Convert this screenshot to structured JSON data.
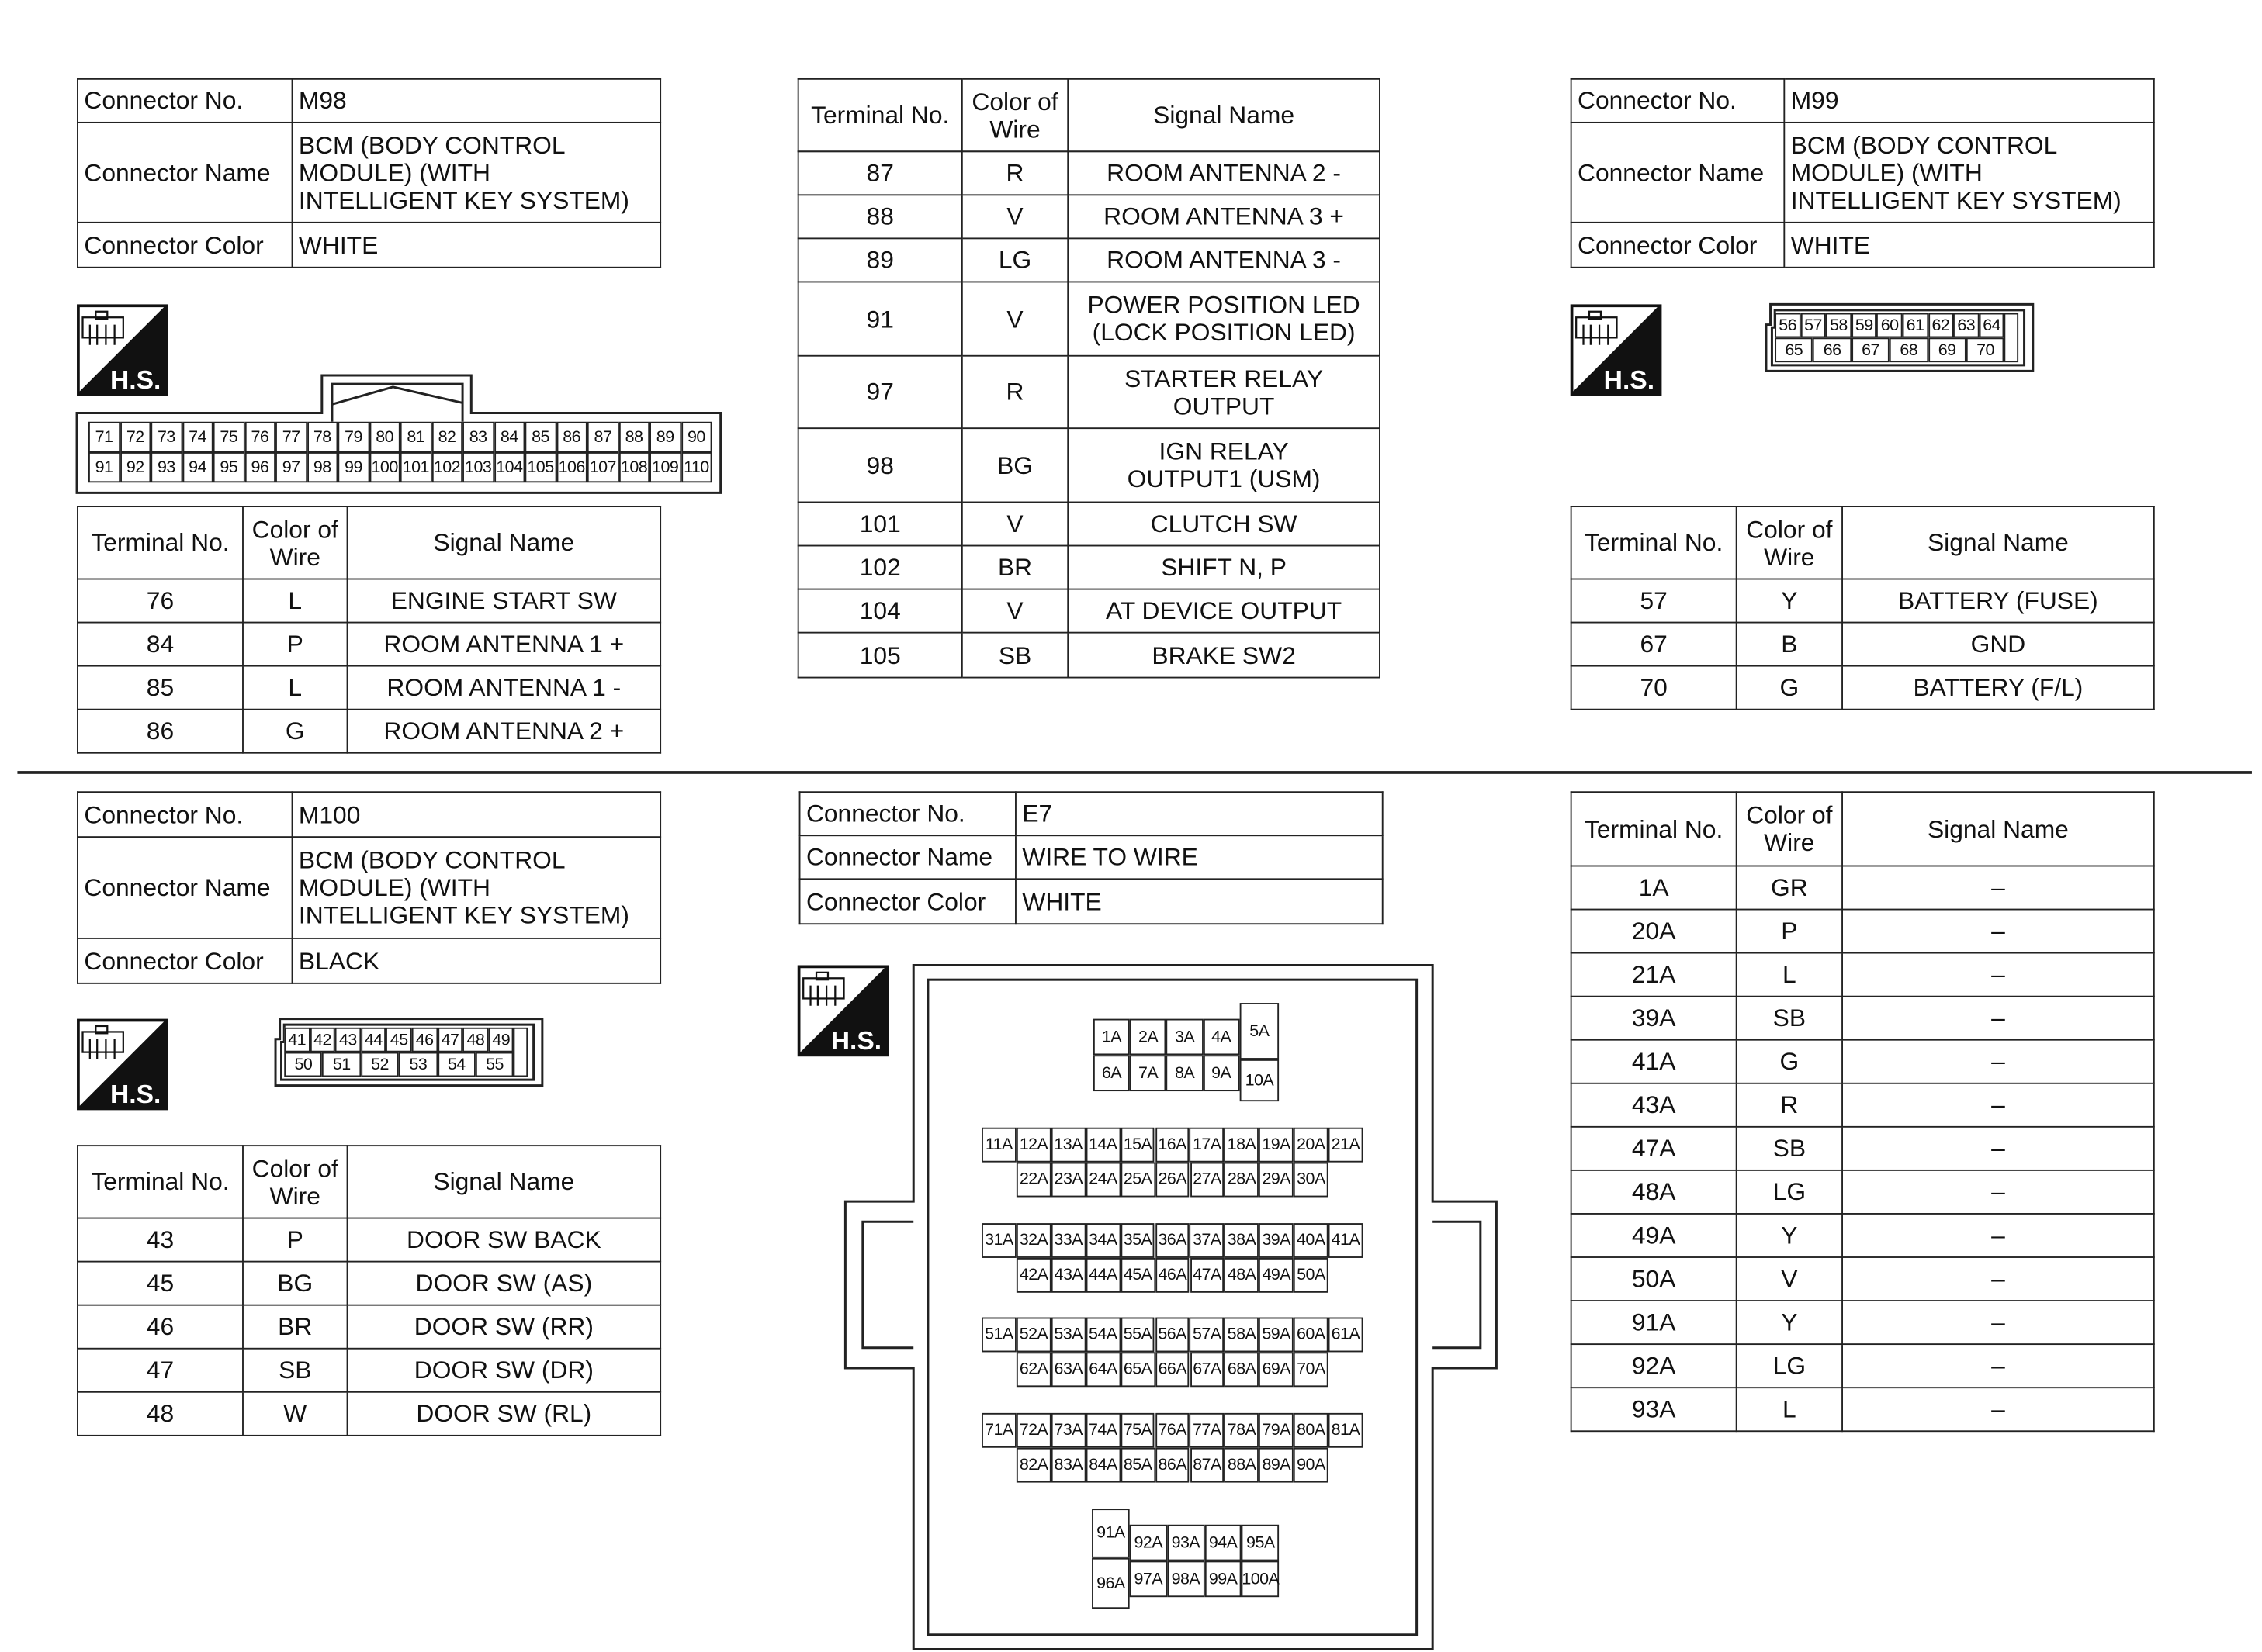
{
  "hs_label": "H.S.",
  "m98": {
    "info": [
      [
        "Connector No.",
        "M98"
      ],
      [
        "Connector Name",
        "BCM (BODY CONTROL\nMODULE) (WITH\nINTELLIGENT KEY SYSTEM)"
      ],
      [
        "Connector Color",
        "WHITE"
      ]
    ],
    "connector_rows": [
      [
        "71",
        "72",
        "73",
        "74",
        "75",
        "76",
        "77",
        "78",
        "79",
        "80",
        "81",
        "82",
        "83",
        "84",
        "85",
        "86",
        "87",
        "88",
        "89",
        "90"
      ],
      [
        "91",
        "92",
        "93",
        "94",
        "95",
        "96",
        "97",
        "98",
        "99",
        "100",
        "101",
        "102",
        "103",
        "104",
        "105",
        "106",
        "107",
        "108",
        "109",
        "110"
      ]
    ],
    "header": [
      "Terminal No.",
      "Color of\nWire",
      "Signal Name"
    ],
    "rows": [
      [
        "76",
        "L",
        "ENGINE START SW"
      ],
      [
        "84",
        "P",
        "ROOM ANTENNA 1 +"
      ],
      [
        "85",
        "L",
        "ROOM ANTENNA 1 -"
      ],
      [
        "86",
        "G",
        "ROOM ANTENNA 2 +"
      ]
    ],
    "rows_continued": [
      [
        "87",
        "R",
        "ROOM ANTENNA 2 -"
      ],
      [
        "88",
        "V",
        "ROOM ANTENNA 3 +"
      ],
      [
        "89",
        "LG",
        "ROOM ANTENNA 3 -"
      ],
      [
        "91",
        "V",
        "POWER POSITION LED\n(LOCK POSITION LED)"
      ],
      [
        "97",
        "R",
        "STARTER RELAY\nOUTPUT"
      ],
      [
        "98",
        "BG",
        "IGN RELAY\nOUTPUT1 (USM)"
      ],
      [
        "101",
        "V",
        "CLUTCH SW"
      ],
      [
        "102",
        "BR",
        "SHIFT N, P"
      ],
      [
        "104",
        "V",
        "AT DEVICE OUTPUT"
      ],
      [
        "105",
        "SB",
        "BRAKE SW2"
      ]
    ]
  },
  "m99": {
    "info": [
      [
        "Connector No.",
        "M99"
      ],
      [
        "Connector Name",
        "BCM (BODY CONTROL\nMODULE) (WITH\nINTELLIGENT KEY SYSTEM)"
      ],
      [
        "Connector Color",
        "WHITE"
      ]
    ],
    "connector_rows": [
      [
        "56",
        "57",
        "58",
        "59",
        "60",
        "61",
        "62",
        "63",
        "64"
      ],
      [
        "65",
        "66",
        "67",
        "68",
        "69",
        "70"
      ]
    ],
    "header": [
      "Terminal No.",
      "Color of\nWire",
      "Signal Name"
    ],
    "rows": [
      [
        "57",
        "Y",
        "BATTERY (FUSE)"
      ],
      [
        "67",
        "B",
        "GND"
      ],
      [
        "70",
        "G",
        "BATTERY (F/L)"
      ]
    ]
  },
  "m100": {
    "info": [
      [
        "Connector No.",
        "M100"
      ],
      [
        "Connector Name",
        "BCM (BODY CONTROL\nMODULE) (WITH\nINTELLIGENT KEY SYSTEM)"
      ],
      [
        "Connector Color",
        "BLACK"
      ]
    ],
    "connector_rows": [
      [
        "41",
        "42",
        "43",
        "44",
        "45",
        "46",
        "47",
        "48",
        "49"
      ],
      [
        "50",
        "51",
        "52",
        "53",
        "54",
        "55"
      ]
    ],
    "header": [
      "Terminal No.",
      "Color of\nWire",
      "Signal Name"
    ],
    "rows": [
      [
        "43",
        "P",
        "DOOR SW BACK"
      ],
      [
        "45",
        "BG",
        "DOOR SW (AS)"
      ],
      [
        "46",
        "BR",
        "DOOR SW (RR)"
      ],
      [
        "47",
        "SB",
        "DOOR SW (DR)"
      ],
      [
        "48",
        "W",
        "DOOR SW (RL)"
      ]
    ]
  },
  "e7": {
    "info": [
      [
        "Connector No.",
        "E7"
      ],
      [
        "Connector Name",
        "WIRE TO WIRE"
      ],
      [
        "Connector Color",
        "WHITE"
      ]
    ],
    "top_block": {
      "row1": [
        "1A",
        "2A",
        "3A",
        "4A"
      ],
      "row2": [
        "6A",
        "7A",
        "8A",
        "9A"
      ],
      "tall": [
        "5A",
        "10A"
      ]
    },
    "mid_blocks": [
      [
        [
          "11A",
          "12A",
          "13A",
          "14A",
          "15A",
          "16A",
          "17A",
          "18A",
          "19A",
          "20A",
          "21A"
        ],
        [
          "22A",
          "23A",
          "24A",
          "25A",
          "26A",
          "27A",
          "28A",
          "29A",
          "30A"
        ]
      ],
      [
        [
          "31A",
          "32A",
          "33A",
          "34A",
          "35A",
          "36A",
          "37A",
          "38A",
          "39A",
          "40A",
          "41A"
        ],
        [
          "42A",
          "43A",
          "44A",
          "45A",
          "46A",
          "47A",
          "48A",
          "49A",
          "50A"
        ]
      ],
      [
        [
          "51A",
          "52A",
          "53A",
          "54A",
          "55A",
          "56A",
          "57A",
          "58A",
          "59A",
          "60A",
          "61A"
        ],
        [
          "62A",
          "63A",
          "64A",
          "65A",
          "66A",
          "67A",
          "68A",
          "69A",
          "70A"
        ]
      ],
      [
        [
          "71A",
          "72A",
          "73A",
          "74A",
          "75A",
          "76A",
          "77A",
          "78A",
          "79A",
          "80A",
          "81A"
        ],
        [
          "82A",
          "83A",
          "84A",
          "85A",
          "86A",
          "87A",
          "88A",
          "89A",
          "90A"
        ]
      ]
    ],
    "bottom_block": {
      "tall": [
        "91A",
        "96A"
      ],
      "row1": [
        "92A",
        "93A",
        "94A",
        "95A"
      ],
      "row2": [
        "97A",
        "98A",
        "99A",
        "100A"
      ]
    },
    "header": [
      "Terminal No.",
      "Color of\nWire",
      "Signal Name"
    ],
    "rows": [
      [
        "1A",
        "GR",
        "–"
      ],
      [
        "20A",
        "P",
        "–"
      ],
      [
        "21A",
        "L",
        "–"
      ],
      [
        "39A",
        "SB",
        "–"
      ],
      [
        "41A",
        "G",
        "–"
      ],
      [
        "43A",
        "R",
        "–"
      ],
      [
        "47A",
        "SB",
        "–"
      ],
      [
        "48A",
        "LG",
        "–"
      ],
      [
        "49A",
        "Y",
        "–"
      ],
      [
        "50A",
        "V",
        "–"
      ],
      [
        "91A",
        "Y",
        "–"
      ],
      [
        "92A",
        "LG",
        "–"
      ],
      [
        "93A",
        "L",
        "–"
      ]
    ]
  }
}
